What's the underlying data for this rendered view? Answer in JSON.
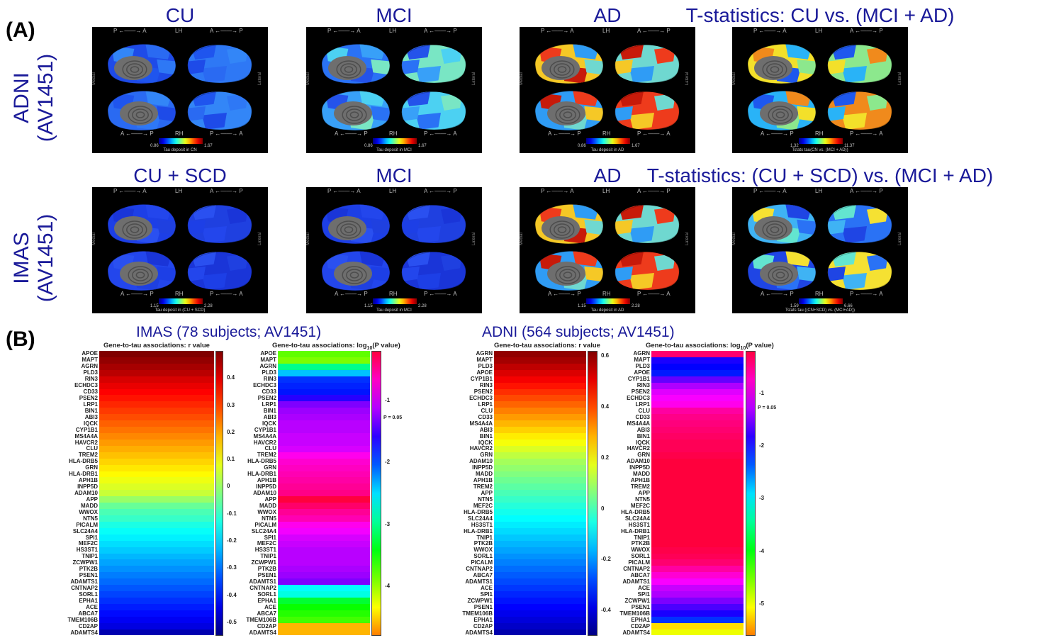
{
  "panel_a": {
    "label": "(A)",
    "rows": [
      {
        "label": "ADNI\n(AV1451)",
        "columns": [
          {
            "title": "CU",
            "cbar_min": "0.86",
            "cbar_max": "1.67",
            "cbar_label": "Tau deposit in CN",
            "style": "low"
          },
          {
            "title": "MCI",
            "cbar_min": "0.86",
            "cbar_max": "1.67",
            "cbar_label": "Tau deposit in MCI",
            "style": "mid"
          },
          {
            "title": "AD",
            "cbar_min": "0.86",
            "cbar_max": "1.67",
            "cbar_label": "Tau deposit in AD",
            "style": "high"
          },
          {
            "title": "T-statistics: CU vs. (MCI + AD)",
            "cbar_min": "1.32",
            "cbar_max": "11.37",
            "cbar_label": "Tstats tau(CN vs. (MCI + AD))",
            "style": "tstat"
          }
        ]
      },
      {
        "label": "IMAS\n(AV1451)",
        "columns": [
          {
            "title": "CU + SCD",
            "cbar_min": "1.15",
            "cbar_max": "2.28",
            "cbar_label": "Tau deposit in (CU + SCD)",
            "style": "verylow"
          },
          {
            "title": "MCI",
            "cbar_min": "1.15",
            "cbar_max": "2.28",
            "cbar_label": "Tau deposit in MCI",
            "style": "verylow"
          },
          {
            "title": "AD",
            "cbar_min": "1.15",
            "cbar_max": "2.28",
            "cbar_label": "Tau deposit in AD",
            "style": "high"
          },
          {
            "title": "T-statistics: (CU + SCD) vs. (MCI + AD)",
            "cbar_min": "1.59",
            "cbar_max": "6.66",
            "cbar_label": "Tstats tau ((CN+SCD) vs. (MCI+AD))",
            "style": "tstat2"
          }
        ]
      }
    ],
    "orient": {
      "top_left": "P ←——→ A",
      "top_mid": "LH",
      "top_right": "A ←——→ P",
      "bot_left": "A ←——→ P",
      "bot_mid": "RH",
      "bot_right": "P ←——→ A",
      "medial": "Medial",
      "lateral": "Lateral"
    }
  },
  "panel_b": {
    "label": "(B)",
    "groups": [
      {
        "title": "IMAS (78 subjects; AV1451)",
        "r_title": "Gene-to-tau associations: r value",
        "p_title": "Gene-to-tau associations: log10(P value)",
        "r_genes": [
          "APOE",
          "MAPT",
          "AGRN",
          "PLD3",
          "RIN3",
          "ECHDC3",
          "CD33",
          "PSEN2",
          "LRP1",
          "BIN1",
          "ABI3",
          "IQCK",
          "CYP1B1",
          "MS4A4A",
          "HAVCR2",
          "CLU",
          "TREM2",
          "HLA-DRB5",
          "GRN",
          "HLA-DRB1",
          "APH1B",
          "INPP5D",
          "ADAM10",
          "APP",
          "MADD",
          "WWOX",
          "NTN5",
          "PICALM",
          "SLC24A4",
          "SPI1",
          "MEF2C",
          "HS3ST1",
          "TNIP1",
          "ZCWPW1",
          "PTK2B",
          "PSEN1",
          "ADAMTS1",
          "CNTNAP2",
          "SORL1",
          "EPHA1",
          "ACE",
          "ABCA7",
          "TMEM106B",
          "CD2AP",
          "ADAMTS4"
        ],
        "r_values": [
          0.5,
          0.48,
          0.46,
          0.44,
          0.41,
          0.39,
          0.37,
          0.35,
          0.33,
          0.31,
          0.29,
          0.27,
          0.25,
          0.23,
          0.21,
          0.19,
          0.17,
          0.15,
          0.13,
          0.11,
          0.09,
          0.07,
          0.05,
          0.0,
          -0.05,
          -0.08,
          -0.1,
          -0.13,
          -0.15,
          -0.17,
          -0.19,
          -0.21,
          -0.23,
          -0.25,
          -0.27,
          -0.29,
          -0.31,
          -0.33,
          -0.35,
          -0.37,
          -0.39,
          -0.41,
          -0.43,
          -0.45,
          -0.5
        ],
        "r_ticks": [
          "0.4",
          "0.3",
          "0.2",
          "0.1",
          "0",
          "-0.1",
          "-0.2",
          "-0.3",
          "-0.4",
          "-0.5"
        ],
        "r_range": [
          -0.55,
          0.5
        ],
        "p_genes": [
          "APOE",
          "MAPT",
          "AGRN",
          "PLD3",
          "RIN3",
          "ECHDC3",
          "CD33",
          "PSEN2",
          "LRP1",
          "BIN1",
          "ABI3",
          "IQCK",
          "CYP1B1",
          "MS4A4A",
          "HAVCR2",
          "CLU",
          "TREM2",
          "HLA-DRB5",
          "GRN",
          "HLA-DRB1",
          "APH1B",
          "INPP5D",
          "ADAM10",
          "APP",
          "MADD",
          "WWOX",
          "NTN5",
          "PICALM",
          "SLC24A4",
          "SPI1",
          "MEF2C",
          "HS3ST1",
          "TNIP1",
          "ZCWPW1",
          "PTK2B",
          "PSEN1",
          "ADAMTS1",
          "CNTNAP2",
          "SORL1",
          "EPHA1",
          "ACE",
          "ABCA7",
          "TMEM106B",
          "CD2AP",
          "ADAMTS4"
        ],
        "p_values": [
          -3.8,
          -3.9,
          -3.0,
          -2.4,
          -1.9,
          -1.85,
          -1.8,
          -1.6,
          -1.3,
          -1.2,
          -1.15,
          -1.1,
          -1.1,
          -1.05,
          -1.05,
          -1.0,
          -0.8,
          -0.7,
          -0.65,
          -0.6,
          -0.55,
          -0.5,
          -0.45,
          -0.2,
          -0.35,
          -0.5,
          -0.6,
          -0.8,
          -0.9,
          -1.0,
          -1.05,
          -1.1,
          -1.1,
          -1.1,
          -1.15,
          -1.2,
          -1.3,
          -2.6,
          -2.7,
          -3.3,
          -3.5,
          -3.6,
          -3.7,
          -4.6,
          -4.6
        ],
        "p_ticks": [
          "-1",
          "-2",
          "-3",
          "-4"
        ],
        "p_range": [
          -4.8,
          -0.2
        ],
        "p_threshold": "P = 0.05"
      },
      {
        "title": "ADNI (564 subjects; AV1451)",
        "r_title": "Gene-to-tau associations: r value",
        "p_title": "Gene-to-tau associations: log10(P value)",
        "r_genes": [
          "AGRN",
          "MAPT",
          "PLD3",
          "APOE",
          "CYP1B1",
          "RIN3",
          "PSEN2",
          "ECHDC3",
          "LRP1",
          "CLU",
          "CD33",
          "MS4A4A",
          "ABI3",
          "BIN1",
          "IQCK",
          "HAVCR2",
          "GRN",
          "ADAM10",
          "INPP5D",
          "MADD",
          "APH1B",
          "TREM2",
          "APP",
          "NTN5",
          "MEF2C",
          "HLA-DRB5",
          "SLC24A4",
          "HS3ST1",
          "HLA-DRB1",
          "TNIP1",
          "PTK2B",
          "WWOX",
          "SORL1",
          "PICALM",
          "CNTNAP2",
          "ABCA7",
          "ADAMTS1",
          "ACE",
          "SPI1",
          "ZCWPW1",
          "PSEN1",
          "TMEM106B",
          "EPHA1",
          "CD2AP",
          "ADAMTS4"
        ],
        "r_values": [
          0.6,
          0.58,
          0.55,
          0.52,
          0.49,
          0.46,
          0.43,
          0.4,
          0.37,
          0.34,
          0.31,
          0.28,
          0.25,
          0.22,
          0.19,
          0.16,
          0.13,
          0.1,
          0.08,
          0.06,
          0.04,
          0.02,
          0.0,
          -0.02,
          -0.04,
          -0.06,
          -0.08,
          -0.1,
          -0.12,
          -0.14,
          -0.16,
          -0.18,
          -0.2,
          -0.22,
          -0.24,
          -0.26,
          -0.28,
          -0.3,
          -0.32,
          -0.34,
          -0.36,
          -0.38,
          -0.4,
          -0.42,
          -0.45
        ],
        "r_ticks": [
          "0.6",
          "0.4",
          "0.2",
          "0",
          "-0.2",
          "-0.4"
        ],
        "r_range": [
          -0.5,
          0.62
        ],
        "p_genes": [
          "AGRN",
          "MAPT",
          "PLD3",
          "APOE",
          "CYP1B1",
          "RIN3",
          "PSEN2",
          "ECHDC3",
          "LRP1",
          "CLU",
          "CD33",
          "MS4A4A",
          "ABI3",
          "BIN1",
          "IQCK",
          "HAVCR2",
          "GRN",
          "ADAM10",
          "INPP5D",
          "MADD",
          "APH1B",
          "TREM2",
          "APP",
          "NTN5",
          "MEF2C",
          "HLA-DRB5",
          "SLC24A4",
          "HS3ST1",
          "HLA-DRB1",
          "TNIP1",
          "PTK2B",
          "WWOX",
          "SORL1",
          "PICALM",
          "CNTNAP2",
          "ABCA7",
          "ADAMTS1",
          "ACE",
          "SPI1",
          "ZCWPW1",
          "PSEN1",
          "TMEM106B",
          "EPHA1",
          "CD2AP",
          "ADAMTS4"
        ],
        "p_values": [
          -0.4,
          -1.9,
          -2.0,
          -2.1,
          -1.6,
          -1.3,
          -1.1,
          -1.0,
          -0.9,
          -0.6,
          -0.5,
          -0.45,
          -0.4,
          -0.35,
          -0.3,
          -0.3,
          -0.25,
          -0.2,
          -0.2,
          -0.2,
          -0.2,
          -0.2,
          -0.2,
          -0.2,
          -0.2,
          -0.2,
          -0.2,
          -0.2,
          -0.2,
          -0.2,
          -0.2,
          -0.25,
          -0.3,
          -0.4,
          -0.6,
          -0.8,
          -1.0,
          -1.2,
          -1.3,
          -1.5,
          -1.7,
          -1.9,
          -2.2,
          -5.2,
          -5.0
        ],
        "p_ticks": [
          "-1",
          "-2",
          "-3",
          "-4",
          "-5"
        ],
        "p_range": [
          -5.6,
          -0.2
        ],
        "p_threshold": "P = 0.05"
      }
    ]
  }
}
